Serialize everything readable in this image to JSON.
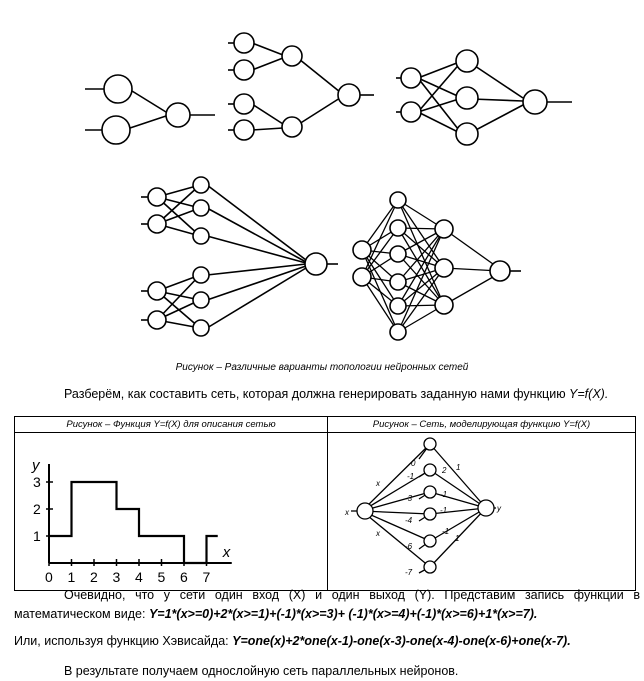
{
  "figure1": {
    "caption": "Рисунок – Различные варианты топологии нейронных сетей"
  },
  "para1": {
    "text": "Разберём, как составить сеть, которая должна генерировать заданную нами функцию ",
    "func": "Y=f(X)."
  },
  "table": {
    "left_caption": "Рисунок – Функция Y=f(X) для описания сетью",
    "right_caption": "Рисунок – Сеть, моделирующая функцию Y=f(X)"
  },
  "chart_data": {
    "type": "line",
    "title": "",
    "xlabel": "x",
    "ylabel": "y",
    "xlim": [
      0,
      7.5
    ],
    "ylim": [
      0,
      3
    ],
    "x_ticks": [
      "0",
      "1",
      "2",
      "3",
      "4",
      "5",
      "6",
      "7"
    ],
    "y_ticks": [
      "1",
      "2",
      "3"
    ],
    "step_points": [
      [
        0,
        1
      ],
      [
        0.5,
        1
      ],
      [
        1,
        1
      ],
      [
        1,
        3
      ],
      [
        2,
        3
      ],
      [
        3,
        3
      ],
      [
        3,
        2
      ],
      [
        4,
        2
      ],
      [
        4,
        1
      ],
      [
        5,
        1
      ],
      [
        6,
        1
      ],
      [
        6,
        0
      ],
      [
        6.6,
        0
      ],
      [
        7,
        0
      ],
      [
        7,
        1
      ],
      [
        7.5,
        1
      ]
    ]
  },
  "network2": {
    "input_label": "x",
    "output_label": "y",
    "input_weights": [
      "x",
      "x"
    ],
    "hidden_weights": [
      "0",
      "1",
      "3",
      "4",
      "6",
      "7"
    ],
    "output_weights": [
      "1",
      "2",
      "-1",
      "-1",
      "-1",
      "1"
    ],
    "side_weights": [
      "-1",
      "-3",
      "-4",
      "-6",
      "-7"
    ]
  },
  "para2": {
    "text": "Очевидно, что у сети один вход (X) и один выход (Y). Представим запись функции в математическом виде: ",
    "formula": "Y=1*(x>=0)+2*(x>=1)+(-1)*(x>=3)+ (-1)*(x>=4)+(-1)*(x>=6)+1*(x>=7)."
  },
  "para3": {
    "text": "Или, используя функцию Хэвисайда: ",
    "formula": "Y=one(x)+2*one(x-1)-one(x-3)-one(x-4)-one(x-6)+one(x-7)."
  },
  "para4": {
    "text": "В результате получаем однослойную сеть параллельных нейронов."
  }
}
